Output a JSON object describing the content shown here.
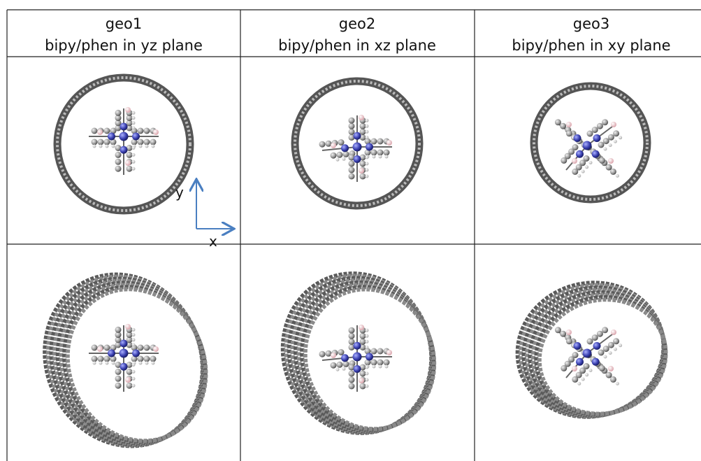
{
  "table": {
    "header": [
      {
        "title": "geo1",
        "subtitle": "bipy/phen in yz plane"
      },
      {
        "title": "geo2",
        "subtitle": "bipy/phen in xz plane"
      },
      {
        "title": "geo3",
        "subtitle": "bipy/phen in xy plane"
      }
    ]
  },
  "axes": {
    "y": "y",
    "x": "x"
  }
}
